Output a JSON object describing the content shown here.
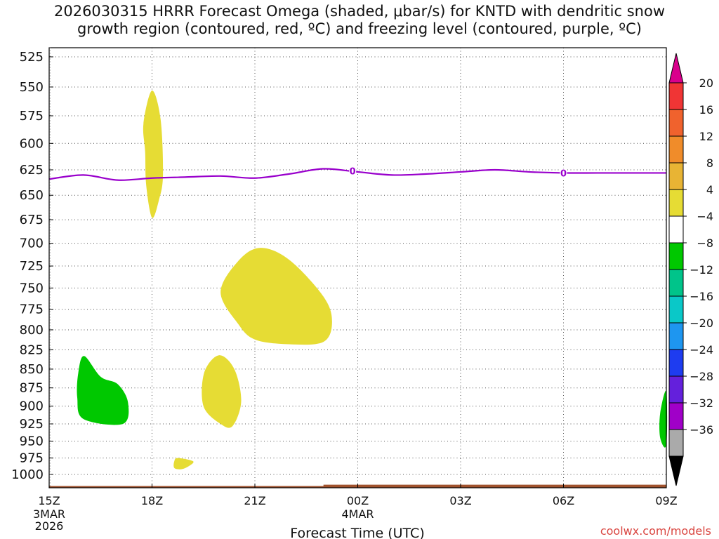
{
  "title": "2026030315 HRRR Forecast Omega (shaded, μbar/s) for KNTD with dendritic snow\ngrowth region (contoured, red, ºC) and freezing level (contoured, purple, ºC)",
  "credit": "coolwx.com/models",
  "chart_data": {
    "type": "contour",
    "xlabel": "Forecast Time (UTC)",
    "x_ticks": [
      {
        "t": 0,
        "label": "15Z",
        "sub": [
          "3MAR",
          "2026"
        ]
      },
      {
        "t": 3,
        "label": "18Z"
      },
      {
        "t": 6,
        "label": "21Z"
      },
      {
        "t": 9,
        "label": "00Z",
        "sub": [
          "4MAR"
        ]
      },
      {
        "t": 12,
        "label": "03Z"
      },
      {
        "t": 15,
        "label": "06Z"
      },
      {
        "t": 18,
        "label": "09Z"
      }
    ],
    "xlim": [
      0,
      18
    ],
    "ylabel": "",
    "y_ticks": [
      525,
      550,
      575,
      600,
      625,
      650,
      675,
      700,
      725,
      750,
      775,
      800,
      825,
      850,
      875,
      900,
      925,
      950,
      975,
      1000
    ],
    "ylim": [
      510,
      1015
    ],
    "y_scale": "log-pressure",
    "grid": true,
    "colorbar": {
      "labels": [
        "20",
        "16",
        "12",
        "8",
        "4",
        "−4",
        "−8",
        "−12",
        "−16",
        "−20",
        "−24",
        "−28",
        "−32",
        "−36"
      ],
      "colors": [
        "#d9008c",
        "#f03535",
        "#f0622d",
        "#f08c2a",
        "#e8b434",
        "#e6dc34",
        "#ffffff",
        "#00c800",
        "#00c48a",
        "#0ac8c8",
        "#1e96f0",
        "#1e3cf0",
        "#6420dc",
        "#a000c8",
        "#aaaaaa",
        "#000000"
      ]
    },
    "freezing_level": {
      "color": "#9900cc",
      "label": "0",
      "points": [
        [
          0,
          634
        ],
        [
          1,
          630
        ],
        [
          2,
          635
        ],
        [
          3,
          633
        ],
        [
          4,
          632
        ],
        [
          5,
          631
        ],
        [
          6,
          633
        ],
        [
          7,
          629
        ],
        [
          8,
          624
        ],
        [
          9,
          627
        ],
        [
          10,
          630
        ],
        [
          11,
          629
        ],
        [
          12,
          627
        ],
        [
          13,
          625
        ],
        [
          14,
          627
        ],
        [
          15,
          628
        ],
        [
          16,
          628
        ],
        [
          17,
          628
        ],
        [
          18,
          628
        ]
      ],
      "label_at": [
        [
          8.85,
          626
        ],
        [
          15.0,
          628
        ]
      ]
    },
    "omega_regions": [
      {
        "value_bin": "4 to 8",
        "color": "#e6dc34",
        "points": [
          [
            3.0,
            553
          ],
          [
            3.25,
            578
          ],
          [
            3.32,
            630
          ],
          [
            3.2,
            655
          ],
          [
            3.0,
            673
          ],
          [
            2.83,
            640
          ],
          [
            2.8,
            608
          ],
          [
            2.75,
            582
          ]
        ]
      },
      {
        "value_bin": "4 to 8",
        "color": "#e6dc34",
        "points": [
          [
            6.15,
            705
          ],
          [
            7.0,
            718
          ],
          [
            8.0,
            760
          ],
          [
            8.25,
            790
          ],
          [
            8.0,
            815
          ],
          [
            7.0,
            818
          ],
          [
            6.0,
            812
          ],
          [
            5.5,
            792
          ],
          [
            5.0,
            755
          ],
          [
            5.5,
            720
          ]
        ]
      },
      {
        "value_bin": "4 to 8",
        "color": "#e6dc34",
        "points": [
          [
            4.95,
            832
          ],
          [
            5.4,
            850
          ],
          [
            5.6,
            893
          ],
          [
            5.35,
            928
          ],
          [
            5.0,
            925
          ],
          [
            4.5,
            900
          ],
          [
            4.52,
            855
          ]
        ]
      },
      {
        "value_bin": "4 to 8",
        "color": "#e6dc34",
        "points": [
          [
            3.75,
            975
          ],
          [
            4.2,
            980
          ],
          [
            4.05,
            988
          ],
          [
            3.85,
            992
          ],
          [
            3.65,
            990
          ],
          [
            3.65,
            980
          ]
        ]
      },
      {
        "value_bin": "-8 to -4",
        "color": "#00c800",
        "points": [
          [
            1.02,
            833
          ],
          [
            1.5,
            860
          ],
          [
            2.0,
            870
          ],
          [
            2.3,
            895
          ],
          [
            2.15,
            925
          ],
          [
            1.0,
            918
          ],
          [
            0.82,
            888
          ],
          [
            0.85,
            855
          ]
        ]
      },
      {
        "value_bin": "-8 to -4",
        "color": "#00c800",
        "points": [
          [
            18.0,
            880
          ],
          [
            18.0,
            955
          ],
          [
            17.82,
            945
          ],
          [
            17.82,
            910
          ]
        ]
      }
    ],
    "terrain": {
      "color": "#a0522d",
      "pressure_left": 1018,
      "pressure_right": 1016
    }
  }
}
